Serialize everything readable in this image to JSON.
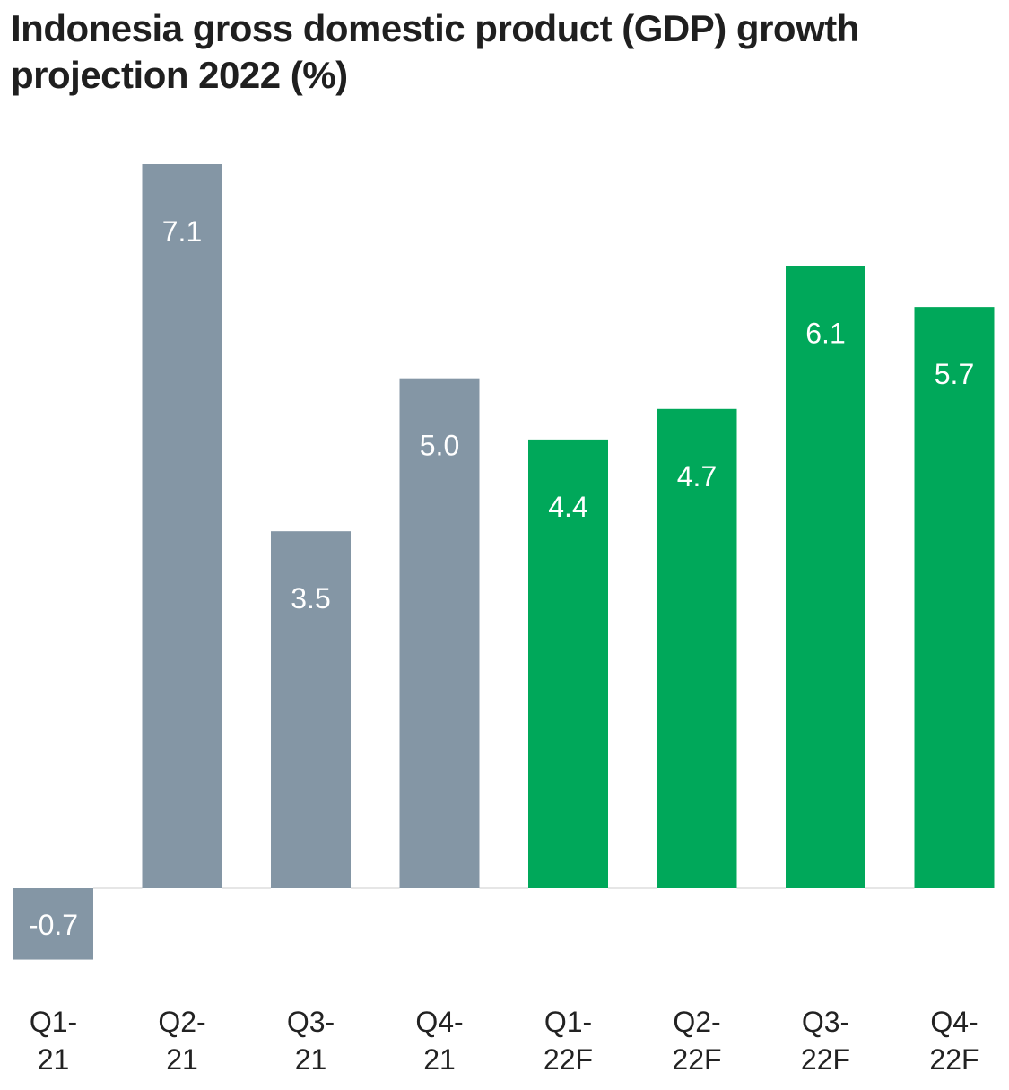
{
  "chart_data": {
    "type": "bar",
    "title": "Indonesia gross domestic product (GDP) growth projection 2022 (%)",
    "title_lines": [
      "Indonesia gross domestic product (GDP) growth",
      "projection 2022 (%)"
    ],
    "xlabel": "",
    "ylabel": "",
    "ylim": [
      -0.7,
      7.1
    ],
    "grid": false,
    "legend": "none",
    "categories": [
      [
        "Q1-",
        "21"
      ],
      [
        "Q2-",
        "21"
      ],
      [
        "Q3-",
        "21"
      ],
      [
        "Q4-",
        "21"
      ],
      [
        "Q1-",
        "22F"
      ],
      [
        "Q2-",
        "22F"
      ],
      [
        "Q3-",
        "22F"
      ],
      [
        "Q4-",
        "22F"
      ]
    ],
    "values": [
      -0.7,
      7.1,
      3.5,
      5.0,
      4.4,
      4.7,
      6.1,
      5.7
    ],
    "labels": [
      "-0.7",
      "7.1",
      "3.5",
      "5.0",
      "4.4",
      "4.7",
      "6.1",
      "5.7"
    ],
    "series_kind": [
      "actual",
      "actual",
      "actual",
      "actual",
      "forecast",
      "forecast",
      "forecast",
      "forecast"
    ],
    "colors": {
      "actual": "#8496a5",
      "forecast": "#00a85a",
      "baseline": "#dddddd"
    }
  }
}
